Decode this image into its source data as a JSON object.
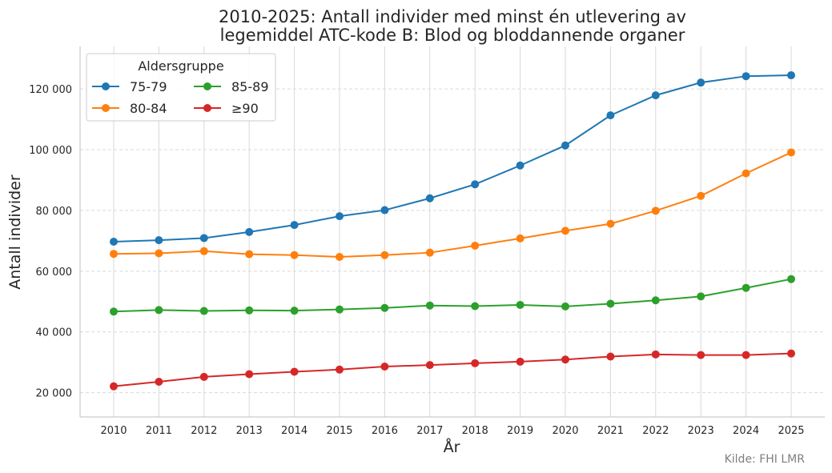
{
  "chart_data": {
    "type": "line",
    "title": "2010-2025: Antall individer med minst én utlevering av legemiddel ATC-kode B: Blod og bloddannende organer",
    "title_lines": [
      "2010-2025: Antall individer med minst én utlevering av",
      "legemiddel ATC-kode B: Blod og bloddannende organer"
    ],
    "xlabel": "År",
    "ylabel": "Antall individer",
    "x": [
      2010,
      2011,
      2012,
      2013,
      2014,
      2015,
      2016,
      2017,
      2018,
      2019,
      2020,
      2021,
      2022,
      2023,
      2024,
      2025
    ],
    "x_tick_labels": [
      "2010",
      "2011",
      "2012",
      "2013",
      "2014",
      "2015",
      "2016",
      "2017",
      "2018",
      "2019",
      "2020",
      "2021",
      "2022",
      "2023",
      "2024",
      "2025"
    ],
    "y_ticks": [
      20000,
      40000,
      60000,
      80000,
      100000,
      120000
    ],
    "y_tick_labels": [
      "20 000",
      "40 000",
      "60 000",
      "80 000",
      "100 000",
      "120 000"
    ],
    "ylim": [
      12000,
      134000
    ],
    "grid": {
      "horizontal": "dashed",
      "vertical": "solid"
    },
    "legend": {
      "title": "Aldersgruppe",
      "placement": "top-left",
      "columns": 2
    },
    "series": [
      {
        "name": "75-79",
        "color": "#1f77b4",
        "values": [
          69700,
          70200,
          70900,
          72900,
          75200,
          78100,
          80100,
          84000,
          88600,
          94800,
          101400,
          111300,
          117900,
          122100,
          124200,
          124500
        ]
      },
      {
        "name": "80-84",
        "color": "#ff7f0e",
        "values": [
          65700,
          65900,
          66600,
          65600,
          65300,
          64700,
          65300,
          66100,
          68400,
          70800,
          73300,
          75600,
          79900,
          84800,
          92200,
          99100
        ]
      },
      {
        "name": "85-89",
        "color": "#2ca02c",
        "values": [
          46700,
          47200,
          46900,
          47100,
          47000,
          47400,
          47900,
          48700,
          48500,
          48900,
          48400,
          49300,
          50400,
          51700,
          54500,
          57400
        ]
      },
      {
        "name": "≥90",
        "color": "#d62728",
        "values": [
          22100,
          23600,
          25200,
          26100,
          26900,
          27600,
          28600,
          29100,
          29700,
          30200,
          30900,
          31900,
          32600,
          32400,
          32400,
          32900
        ]
      }
    ],
    "source_note": "Kilde: FHI LMR"
  }
}
